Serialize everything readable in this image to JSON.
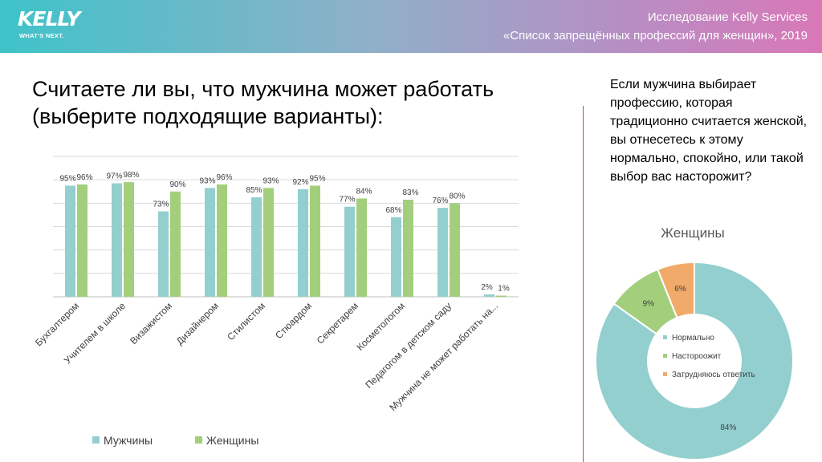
{
  "header": {
    "logo_main": "KELLY",
    "logo_sub": "WHAT'S NEXT.",
    "line1": "Исследование Kelly Services",
    "line2": "«Список запрещённых профессий для женщин», 2019"
  },
  "main_title": "Считаете ли вы, что мужчина может работать (выберите подходящие варианты):",
  "side_question": "Если мужчина выбирает профессию, которая традиционно считается женской, вы отнесетесь к этому нормально, спокойно, или такой выбор вас насторожит?",
  "colors": {
    "men": "#93cfcf",
    "women": "#a3cf7d",
    "unsure": "#f2aa6a"
  },
  "chart_data": [
    {
      "type": "bar",
      "title": "",
      "categories": [
        "Бухгалтером",
        "Учителем в школе",
        "Визажистом",
        "Дизайнером",
        "Стилистом",
        "Стюардом",
        "Секретарем",
        "Косметологом",
        "Педагогом в детском саду",
        "Мужчина не может работать на..."
      ],
      "series": [
        {
          "name": "Мужчины",
          "values": [
            95,
            97,
            73,
            93,
            85,
            92,
            77,
            68,
            76,
            2
          ],
          "labels": [
            "95%",
            "97%",
            "73%",
            "93%",
            "85%",
            "92%",
            "77%",
            "68%",
            "76%",
            "2%"
          ]
        },
        {
          "name": "Женщины",
          "values": [
            96,
            98,
            90,
            96,
            93,
            95,
            84,
            83,
            80,
            1
          ],
          "labels": [
            "96%",
            "98%",
            "90%",
            "96%",
            "93%",
            "95%",
            "84%",
            "83%",
            "80%",
            "1%"
          ]
        }
      ],
      "ylim": [
        0,
        120
      ],
      "grid": true,
      "legend": "bottom-left"
    },
    {
      "type": "pie",
      "title": "Женщины",
      "labels": [
        "Нормально",
        "Настороожит",
        "Затрудняюсь ответить"
      ],
      "values": [
        84,
        9,
        6
      ],
      "value_labels": [
        "84%",
        "9%",
        "6%"
      ],
      "legend": "center"
    }
  ]
}
